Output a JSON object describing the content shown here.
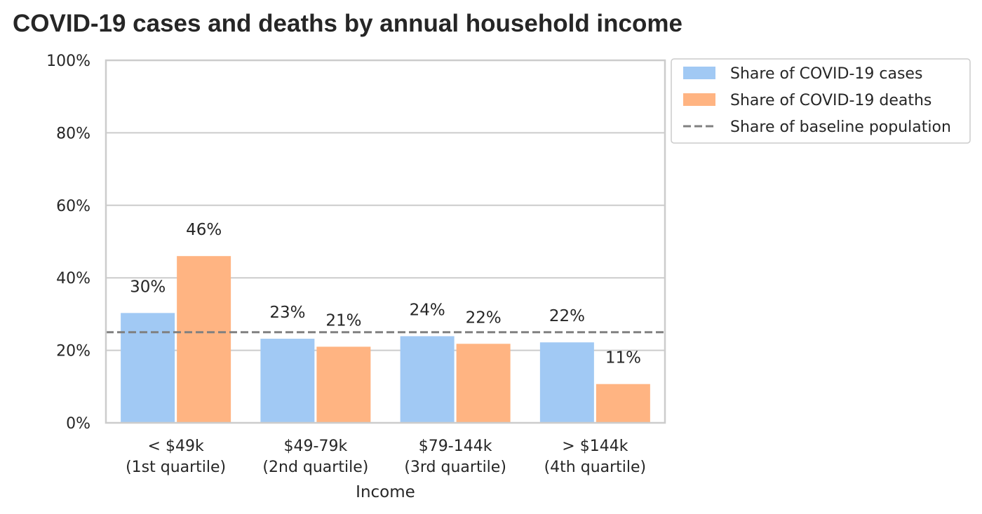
{
  "chart_data": {
    "type": "bar",
    "title": "COVID-19 cases and deaths by annual household income",
    "xlabel": "Income",
    "ylabel": "",
    "ylim": [
      0,
      100
    ],
    "yticks": [
      "0%",
      "20%",
      "40%",
      "60%",
      "80%",
      "100%"
    ],
    "ytick_values": [
      0,
      20,
      40,
      60,
      80,
      100
    ],
    "categories": [
      [
        "< $49k",
        "(1st quartile)"
      ],
      [
        "$49-79k",
        "(2nd quartile)"
      ],
      [
        "$79-144k",
        "(3rd quartile)"
      ],
      [
        "> $144k",
        "(4th quartile)"
      ]
    ],
    "series": [
      {
        "name": "Share of COVID-19 cases",
        "color": "#a1c9f4",
        "values": [
          30.3,
          23.2,
          23.9,
          22.2
        ],
        "labels": [
          "30%",
          "23%",
          "24%",
          "22%"
        ]
      },
      {
        "name": "Share of COVID-19 deaths",
        "color": "#ffb482",
        "values": [
          46.0,
          21.0,
          21.8,
          10.7
        ],
        "labels": [
          "46%",
          "21%",
          "22%",
          "11%"
        ]
      }
    ],
    "reference_line": {
      "name": "Share of baseline population",
      "value": 25,
      "color": "#808080",
      "style": "dashed"
    },
    "grid": true,
    "legend_position": "outside-top-right"
  }
}
